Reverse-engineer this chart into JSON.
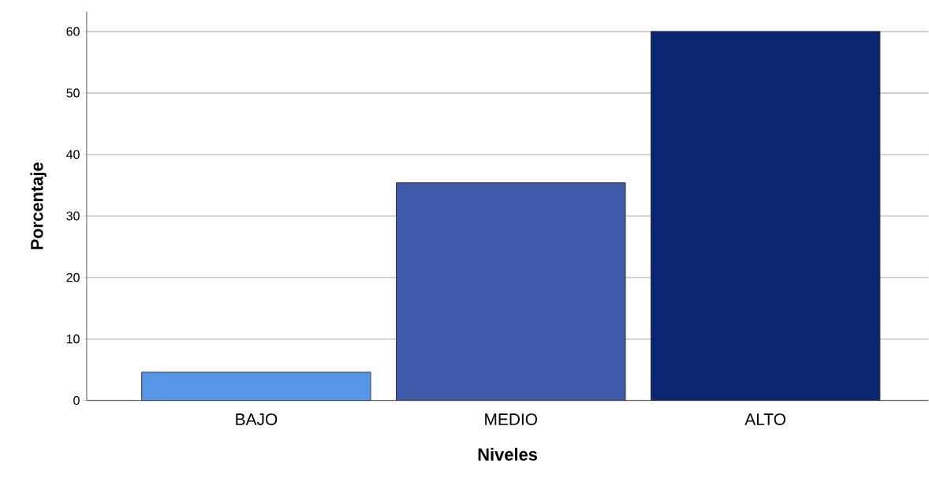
{
  "chart_data": {
    "type": "bar",
    "xlabel": "Niveles",
    "ylabel": "Porcentaje",
    "categories": [
      "BAJO",
      "MEDIO",
      "ALTO"
    ],
    "values": [
      4.6,
      35.4,
      60.0
    ],
    "colors": [
      "#5596e6",
      "#3e5ba9",
      "#0b2670"
    ],
    "ylim": [
      0,
      63.2
    ],
    "yticks": [
      0,
      10,
      20,
      30,
      40,
      50,
      60
    ],
    "grid": "y"
  }
}
